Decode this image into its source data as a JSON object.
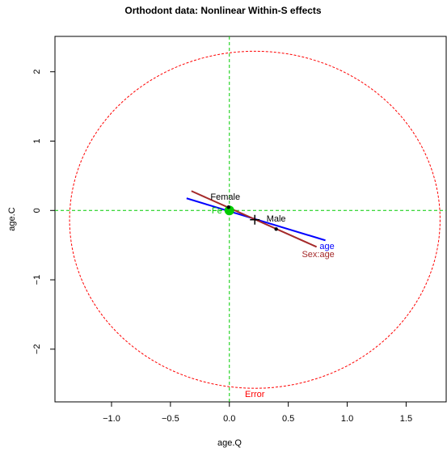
{
  "chart_data": {
    "type": "heplot",
    "title": "Orthodont data: Nonlinear Within-S effects",
    "x_label": "age.Q",
    "y_label": "age.C",
    "xlim": [
      -1.48,
      1.84
    ],
    "ylim": [
      -2.76,
      2.51
    ],
    "xticks": [
      {
        "value": -1,
        "label": "−1.0"
      },
      {
        "value": -0.5,
        "label": "−0.5"
      },
      {
        "value": 0,
        "label": "0.0"
      },
      0.5,
      {
        "value": 1,
        "label": "1.0"
      },
      1.5
    ],
    "yticks": [
      {
        "value": -2,
        "label": "−2"
      },
      {
        "value": -1,
        "label": "−1"
      },
      0,
      1,
      2
    ],
    "reference_lines": {
      "x": 0,
      "y": 0,
      "color": "#00cc00"
    },
    "ellipses": [
      {
        "name": "Error",
        "color": "#ff0000",
        "center": [
          0.216,
          -0.134
        ],
        "radii": [
          1.572,
          2.43
        ]
      }
    ],
    "lines": [
      {
        "name": "age",
        "color": "#0000ff",
        "x": [
          -0.363,
          0.815
        ],
        "y": [
          0.175,
          -0.431
        ]
      },
      {
        "name": "Sex:age",
        "color": "#a52a2a",
        "x": [
          -0.322,
          0.74
        ],
        "y": [
          0.28,
          -0.525
        ]
      }
    ],
    "points": [
      {
        "name": "Female",
        "x": -0.007,
        "y": 0.047
      },
      {
        "name": "Male",
        "x": 0.397,
        "y": -0.268
      }
    ],
    "intercept": {
      "name": "Fe",
      "color": "#00cc00",
      "x": 0,
      "y": 0
    },
    "grand_mean": {
      "x": 0.216,
      "y": -0.134
    }
  }
}
